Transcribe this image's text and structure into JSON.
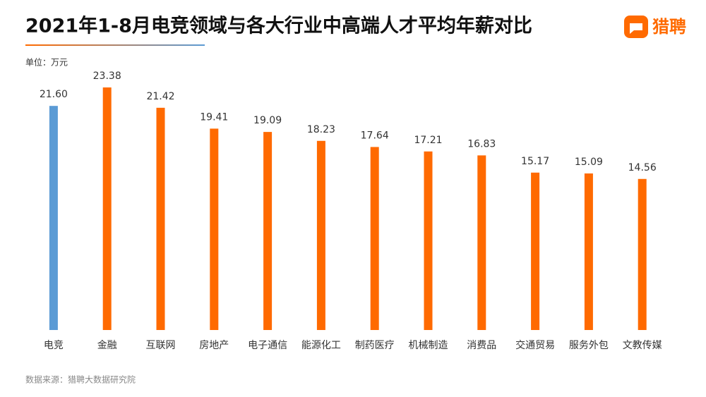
{
  "chart_data": {
    "type": "bar",
    "title": "2021年1-8月电竞领域与各大行业中高端人才平均年薪对比",
    "unit_label": "单位：万元",
    "source": "数据来源：猎聘大数据研究院",
    "brand": "猎聘",
    "categories": [
      "电竞",
      "金融",
      "互联网",
      "房地产",
      "电子通信",
      "能源化工",
      "制药医疗",
      "机械制造",
      "消费品",
      "交通贸易",
      "服务外包",
      "文教传媒"
    ],
    "values": [
      21.6,
      23.38,
      21.42,
      19.41,
      19.09,
      18.23,
      17.64,
      17.21,
      16.83,
      15.17,
      15.09,
      14.56
    ],
    "value_labels": [
      "21.60",
      "23.38",
      "21.42",
      "19.41",
      "19.09",
      "18.23",
      "17.64",
      "17.21",
      "16.83",
      "15.17",
      "15.09",
      "14.56"
    ],
    "colors": [
      "#5b9bd5",
      "#ff6a00",
      "#ff6a00",
      "#ff6a00",
      "#ff6a00",
      "#ff6a00",
      "#ff6a00",
      "#ff6a00",
      "#ff6a00",
      "#ff6a00",
      "#ff6a00",
      "#ff6a00"
    ]
  }
}
